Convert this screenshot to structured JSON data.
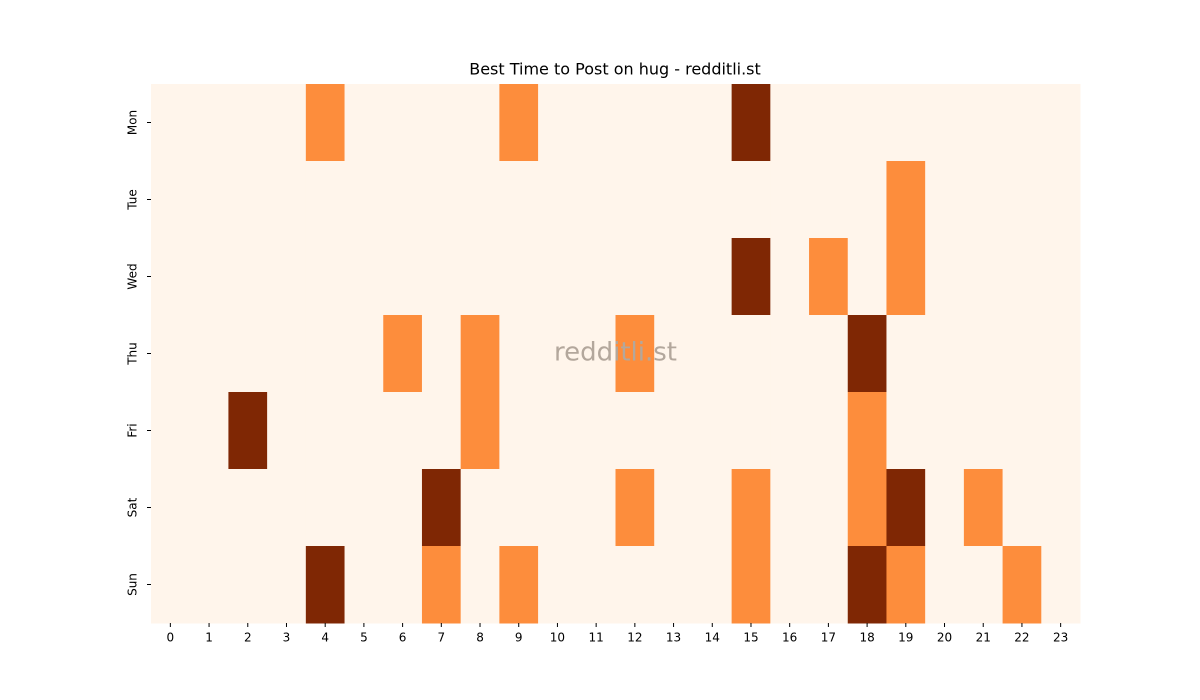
{
  "chart_data": {
    "type": "heatmap",
    "title": "Best Time to Post on hug - redditli.st",
    "watermark": "redditli.st",
    "x": [
      0,
      1,
      2,
      3,
      4,
      5,
      6,
      7,
      8,
      9,
      10,
      11,
      12,
      13,
      14,
      15,
      16,
      17,
      18,
      19,
      20,
      21,
      22,
      23
    ],
    "y": [
      "Mon",
      "Tue",
      "Wed",
      "Thu",
      "Fri",
      "Sat",
      "Sun"
    ],
    "values": [
      [
        0,
        0,
        0,
        0,
        1,
        0,
        0,
        0,
        0,
        1,
        0,
        0,
        0,
        0,
        0,
        2,
        0,
        0,
        0,
        0,
        0,
        0,
        0,
        0
      ],
      [
        0,
        0,
        0,
        0,
        0,
        0,
        0,
        0,
        0,
        0,
        0,
        0,
        0,
        0,
        0,
        0,
        0,
        0,
        0,
        1,
        0,
        0,
        0,
        0
      ],
      [
        0,
        0,
        0,
        0,
        0,
        0,
        0,
        0,
        0,
        0,
        0,
        0,
        0,
        0,
        0,
        2,
        0,
        1,
        0,
        1,
        0,
        0,
        0,
        0
      ],
      [
        0,
        0,
        0,
        0,
        0,
        0,
        1,
        0,
        1,
        0,
        0,
        0,
        1,
        0,
        0,
        0,
        0,
        0,
        2,
        0,
        0,
        0,
        0,
        0
      ],
      [
        0,
        0,
        2,
        0,
        0,
        0,
        0,
        0,
        1,
        0,
        0,
        0,
        0,
        0,
        0,
        0,
        0,
        0,
        1,
        0,
        0,
        0,
        0,
        0
      ],
      [
        0,
        0,
        0,
        0,
        0,
        0,
        0,
        2,
        0,
        0,
        0,
        0,
        1,
        0,
        0,
        1,
        0,
        0,
        1,
        2,
        0,
        1,
        0,
        0
      ],
      [
        0,
        0,
        0,
        0,
        2,
        0,
        0,
        1,
        0,
        1,
        0,
        0,
        0,
        0,
        0,
        1,
        0,
        0,
        2,
        1,
        0,
        0,
        1,
        0
      ]
    ],
    "colormap": [
      "#fff5eb",
      "#fd8d3c",
      "#7f2704"
    ],
    "vlim": [
      0,
      2
    ]
  }
}
